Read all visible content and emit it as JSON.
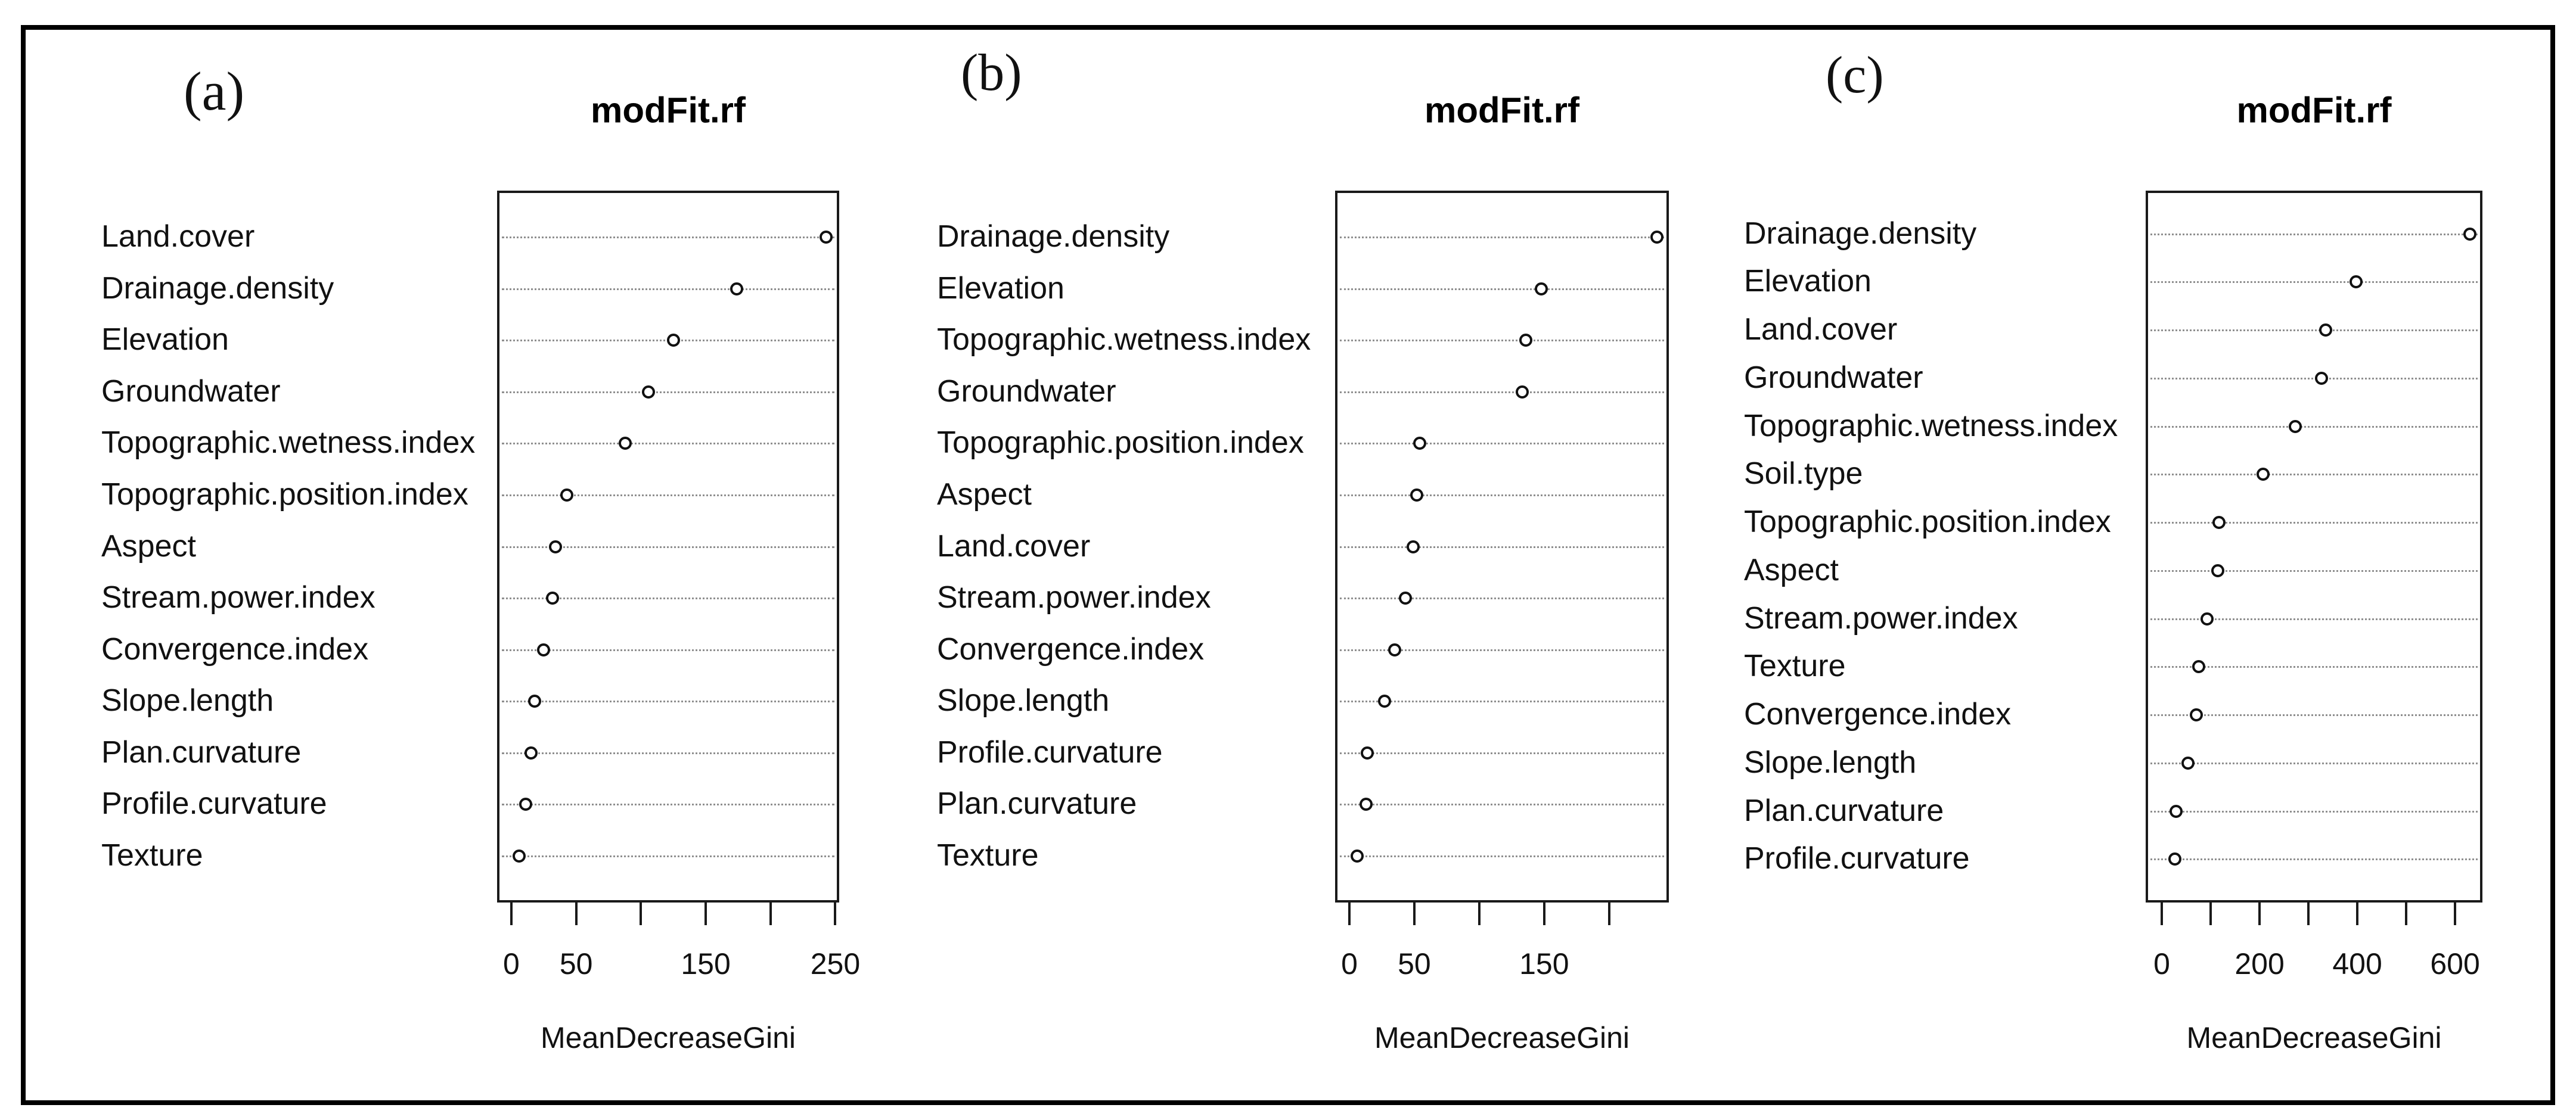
{
  "figure": {
    "description": "Three random forest variable importance dot plots",
    "colors": {
      "ink": "#111111",
      "grid_dots": "#8f8f8f",
      "background": "#ffffff",
      "border": "#000000"
    }
  },
  "chart_data": [
    {
      "panel_letter": "(a)",
      "title": "modFit.rf",
      "xlabel": "MeanDecreaseGini",
      "type": "scatter",
      "point_style": "open-circle",
      "grid": "horizontal dotted per category",
      "legend": "none",
      "categories": [
        "Land.cover",
        "Drainage.density",
        "Elevation",
        "Groundwater",
        "Topographic.wetness.index",
        "Topographic.position.index",
        "Aspect",
        "Stream.power.index",
        "Convergence.index",
        "Slope.length",
        "Plan.curvature",
        "Profile.curvature",
        "Texture"
      ],
      "values": [
        243,
        174,
        125,
        106,
        88,
        43,
        34,
        32,
        25,
        18,
        15,
        11,
        6
      ],
      "xdomain": [
        -11,
        253
      ],
      "xticks": [
        0,
        50,
        100,
        150,
        200,
        250
      ],
      "xtick_labels_shown": [
        0,
        50,
        150,
        250
      ]
    },
    {
      "panel_letter": "(b)",
      "title": "modFit.rf",
      "xlabel": "MeanDecreaseGini",
      "type": "scatter",
      "point_style": "open-circle",
      "grid": "horizontal dotted per category",
      "legend": "none",
      "categories": [
        "Drainage.density",
        "Elevation",
        "Topographic.wetness.index",
        "Groundwater",
        "Topographic.position.index",
        "Aspect",
        "Land.cover",
        "Stream.power.index",
        "Convergence.index",
        "Slope.length",
        "Profile.curvature",
        "Plan.curvature",
        "Texture"
      ],
      "values": [
        237,
        148,
        136,
        133,
        54,
        52,
        49,
        43,
        35,
        27,
        14,
        13,
        6
      ],
      "xdomain": [
        -11,
        246
      ],
      "xticks": [
        0,
        50,
        100,
        150,
        200
      ],
      "xtick_labels_shown": [
        0,
        50,
        150
      ]
    },
    {
      "panel_letter": "(c)",
      "title": "modFit.rf",
      "xlabel": "MeanDecreaseGini",
      "type": "scatter",
      "point_style": "open-circle",
      "grid": "horizontal dotted per category",
      "legend": "none",
      "categories": [
        "Drainage.density",
        "Elevation",
        "Land.cover",
        "Groundwater",
        "Topographic.wetness.index",
        "Soil.type",
        "Topographic.position.index",
        "Aspect",
        "Stream.power.index",
        "Texture",
        "Convergence.index",
        "Slope.length",
        "Plan.curvature",
        "Profile.curvature"
      ],
      "values": [
        630,
        398,
        335,
        327,
        273,
        207,
        117,
        114,
        92,
        76,
        71,
        54,
        29,
        27
      ],
      "xdomain": [
        -33,
        656
      ],
      "xticks": [
        0,
        100,
        200,
        300,
        400,
        500,
        600
      ],
      "xtick_labels_shown": [
        0,
        200,
        400,
        600
      ]
    }
  ]
}
